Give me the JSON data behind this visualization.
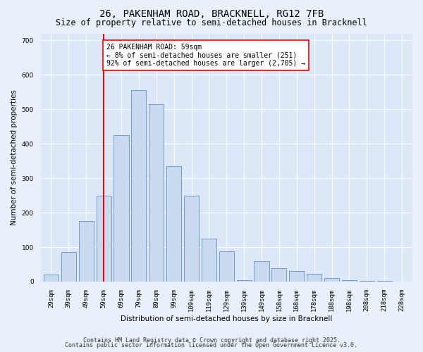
{
  "title": "26, PAKENHAM ROAD, BRACKNELL, RG12 7FB",
  "subtitle": "Size of property relative to semi-detached houses in Bracknell",
  "xlabel": "Distribution of semi-detached houses by size in Bracknell",
  "ylabel": "Number of semi-detached properties",
  "categories": [
    "29sqm",
    "39sqm",
    "49sqm",
    "59sqm",
    "69sqm",
    "79sqm",
    "89sqm",
    "99sqm",
    "109sqm",
    "119sqm",
    "129sqm",
    "139sqm",
    "149sqm",
    "158sqm",
    "168sqm",
    "178sqm",
    "188sqm",
    "198sqm",
    "208sqm",
    "218sqm",
    "228sqm"
  ],
  "values": [
    20,
    85,
    175,
    250,
    425,
    555,
    515,
    335,
    250,
    125,
    88,
    5,
    60,
    38,
    30,
    22,
    10,
    5,
    2,
    1,
    0
  ],
  "bar_color": "#c9daf0",
  "bar_edge_color": "#6090c8",
  "red_line_index": 3,
  "red_line_label": "26 PAKENHAM ROAD: 59sqm",
  "annotation_line2": "← 8% of semi-detached houses are smaller (251)",
  "annotation_line3": "92% of semi-detached houses are larger (2,705) →",
  "ylim": [
    0,
    720
  ],
  "yticks": [
    0,
    100,
    200,
    300,
    400,
    500,
    600,
    700
  ],
  "plot_bg_color": "#dce8f8",
  "fig_bg_color": "#e8f0fa",
  "grid_color": "#ffffff",
  "footer_line1": "Contains HM Land Registry data © Crown copyright and database right 2025.",
  "footer_line2": "Contains public sector information licensed under the Open Government Licence v3.0.",
  "title_fontsize": 10,
  "subtitle_fontsize": 8.5,
  "axis_label_fontsize": 7.5,
  "tick_fontsize": 6.5,
  "annotation_fontsize": 7,
  "footer_fontsize": 6
}
